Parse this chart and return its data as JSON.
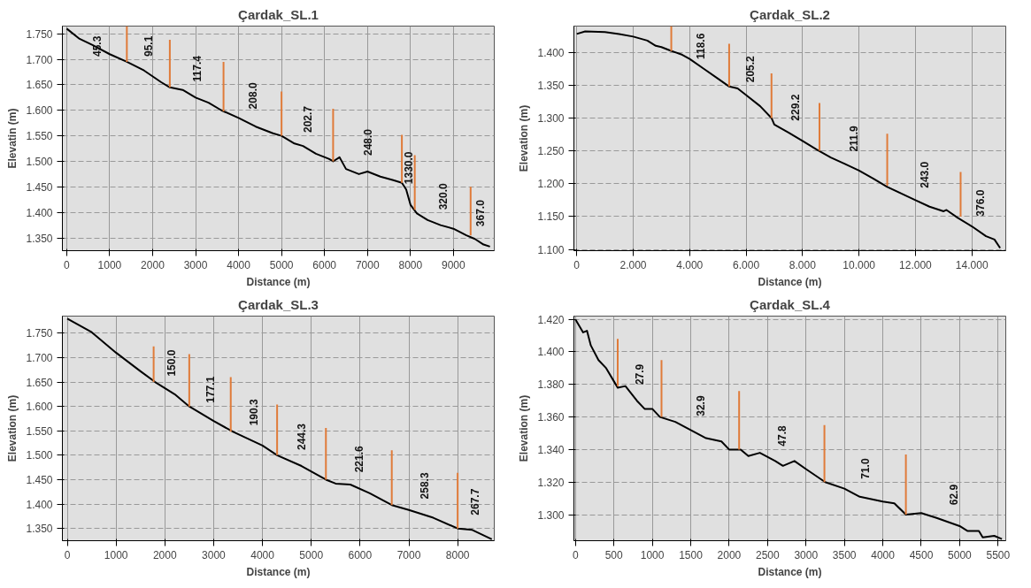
{
  "chart_data": [
    {
      "type": "line",
      "title": "Çardak_SL.1",
      "xlabel": "Distance (m)",
      "ylabel": "Elevatin (m)",
      "xlim": [
        -100,
        9950
      ],
      "ylim": [
        1.325,
        1.765
      ],
      "xticks": [
        0,
        1000,
        2000,
        3000,
        4000,
        5000,
        6000,
        7000,
        8000,
        9000
      ],
      "yticks": [
        {
          "value": 1.35,
          "label": "1.350"
        },
        {
          "value": 1.4,
          "label": "1.400"
        },
        {
          "value": 1.45,
          "label": "1.450"
        },
        {
          "value": 1.5,
          "label": "1.500"
        },
        {
          "value": 1.55,
          "label": "1.550"
        },
        {
          "value": 1.6,
          "label": "1.600"
        },
        {
          "value": 1.65,
          "label": "1.650"
        },
        {
          "value": 1.7,
          "label": "1.700"
        },
        {
          "value": 1.75,
          "label": "1.750"
        }
      ],
      "grid": true,
      "series": [
        {
          "color": "#000000",
          "x": [
            0,
            300,
            600,
            1000,
            1400,
            1800,
            2200,
            2400,
            2700,
            3000,
            3300,
            3600,
            4000,
            4400,
            4800,
            5000,
            5300,
            5500,
            5800,
            6100,
            6200,
            6350,
            6500,
            6800,
            7000,
            7300,
            7600,
            7800,
            7900,
            8000,
            8150,
            8400,
            8700,
            9000,
            9300,
            9500,
            9700,
            9850
          ],
          "values": [
            1.76,
            1.74,
            1.728,
            1.71,
            1.695,
            1.678,
            1.655,
            1.645,
            1.64,
            1.625,
            1.615,
            1.6,
            1.585,
            1.568,
            1.555,
            1.55,
            1.535,
            1.53,
            1.515,
            1.505,
            1.5,
            1.508,
            1.485,
            1.475,
            1.48,
            1.47,
            1.463,
            1.458,
            1.445,
            1.415,
            1.398,
            1.385,
            1.375,
            1.368,
            1.355,
            1.348,
            1.337,
            1.333
          ]
        },
        {
          "color": "#e07b39",
          "x": [
            1400,
            1400
          ],
          "values": [
            1.695,
            1.765
          ]
        },
        {
          "color": "#e07b39",
          "x": [
            2400,
            2400
          ],
          "values": [
            1.645,
            1.738
          ]
        },
        {
          "color": "#e07b39",
          "x": [
            3650,
            3650
          ],
          "values": [
            1.598,
            1.695
          ]
        },
        {
          "color": "#e07b39",
          "x": [
            5000,
            5000
          ],
          "values": [
            1.55,
            1.637
          ]
        },
        {
          "color": "#e07b39",
          "x": [
            6200,
            6200
          ],
          "values": [
            1.5,
            1.603
          ]
        },
        {
          "color": "#e07b39",
          "x": [
            7800,
            7800
          ],
          "values": [
            1.458,
            1.552
          ]
        },
        {
          "color": "#e07b39",
          "x": [
            8100,
            8100
          ],
          "values": [
            1.405,
            1.512
          ]
        },
        {
          "color": "#e07b39",
          "x": [
            9400,
            9400
          ],
          "values": [
            1.355,
            1.45
          ]
        }
      ],
      "annotations": [
        "45.3",
        "95.1",
        "117.4",
        "208.0",
        "202.7",
        "248.0",
        "1330.0",
        "320.0",
        "367.0"
      ]
    },
    {
      "type": "line",
      "title": "Çardak_SL.2",
      "xlabel": "Distance (m)",
      "ylabel": "Elevation (m)",
      "xlim": [
        -0.1,
        15.2
      ],
      "ylim": [
        1.098,
        1.44
      ],
      "xticks": [
        0,
        {
          "value": 2,
          "label": "2.000"
        },
        {
          "value": 4,
          "label": "4.000"
        },
        {
          "value": 6,
          "label": "6.000"
        },
        {
          "value": 8,
          "label": "8.000"
        },
        {
          "value": 10,
          "label": "10.000"
        },
        {
          "value": 12,
          "label": "12.000"
        },
        {
          "value": 14,
          "label": "14.000"
        }
      ],
      "yticks": [
        {
          "value": 1.1,
          "label": "1.100"
        },
        {
          "value": 1.15,
          "label": "1.150"
        },
        {
          "value": 1.2,
          "label": "1.200"
        },
        {
          "value": 1.25,
          "label": "1.250"
        },
        {
          "value": 1.3,
          "label": "1.300"
        },
        {
          "value": 1.35,
          "label": "1.350"
        },
        {
          "value": 1.4,
          "label": "1.400"
        }
      ],
      "grid": true,
      "series": [
        {
          "color": "#000000",
          "x": [
            0,
            0.3,
            1,
            1.5,
            2,
            2.5,
            2.8,
            3,
            3.3,
            3.7,
            4,
            4.5,
            5,
            5.4,
            5.7,
            6,
            6.5,
            6.9,
            7,
            7.5,
            8,
            8.5,
            9,
            9.5,
            10,
            10.5,
            11,
            11.5,
            12,
            12.5,
            13,
            13.1,
            13.5,
            14,
            14.5,
            14.8,
            15
          ],
          "values": [
            1.428,
            1.432,
            1.431,
            1.428,
            1.424,
            1.418,
            1.41,
            1.408,
            1.403,
            1.397,
            1.39,
            1.375,
            1.36,
            1.348,
            1.345,
            1.335,
            1.318,
            1.3,
            1.29,
            1.278,
            1.265,
            1.252,
            1.24,
            1.23,
            1.22,
            1.208,
            1.195,
            1.185,
            1.175,
            1.165,
            1.158,
            1.16,
            1.148,
            1.135,
            1.12,
            1.115,
            1.102
          ]
        },
        {
          "color": "#e07b39",
          "x": [
            3.35,
            3.35
          ],
          "values": [
            1.402,
            1.44
          ]
        },
        {
          "color": "#e07b39",
          "x": [
            5.4,
            5.4
          ],
          "values": [
            1.348,
            1.413
          ]
        },
        {
          "color": "#e07b39",
          "x": [
            6.9,
            6.9
          ],
          "values": [
            1.3,
            1.368
          ]
        },
        {
          "color": "#e07b39",
          "x": [
            8.6,
            8.6
          ],
          "values": [
            1.25,
            1.323
          ]
        },
        {
          "color": "#e07b39",
          "x": [
            11,
            11
          ],
          "values": [
            1.197,
            1.276
          ]
        },
        {
          "color": "#e07b39",
          "x": [
            13.6,
            13.6
          ],
          "values": [
            1.15,
            1.218
          ]
        }
      ],
      "annotations": [
        "118.6",
        "205.2",
        "229.2",
        "211.9",
        "243.0",
        "376.0"
      ]
    },
    {
      "type": "line",
      "title": "Çardak_SL.3",
      "xlabel": "Distance (m)",
      "ylabel": "Elevation (m)",
      "xlim": [
        -100,
        8750
      ],
      "ylim": [
        1.325,
        1.785
      ],
      "xticks": [
        0,
        1000,
        2000,
        3000,
        4000,
        5000,
        6000,
        7000,
        8000
      ],
      "yticks": [
        {
          "value": 1.35,
          "label": "1.350"
        },
        {
          "value": 1.4,
          "label": "1.400"
        },
        {
          "value": 1.45,
          "label": "1.450"
        },
        {
          "value": 1.5,
          "label": "1.500"
        },
        {
          "value": 1.55,
          "label": "1.550"
        },
        {
          "value": 1.6,
          "label": "1.600"
        },
        {
          "value": 1.65,
          "label": "1.650"
        },
        {
          "value": 1.7,
          "label": "1.700"
        },
        {
          "value": 1.75,
          "label": "1.750"
        }
      ],
      "grid": true,
      "series": [
        {
          "color": "#000000",
          "x": [
            0,
            500,
            1000,
            1500,
            1800,
            2200,
            2500,
            3000,
            3400,
            4000,
            4300,
            4800,
            5300,
            5500,
            5800,
            6200,
            6650,
            7000,
            7500,
            8000,
            8300,
            8700
          ],
          "values": [
            1.78,
            1.752,
            1.71,
            1.672,
            1.65,
            1.625,
            1.6,
            1.57,
            1.548,
            1.52,
            1.5,
            1.478,
            1.45,
            1.442,
            1.44,
            1.422,
            1.398,
            1.388,
            1.372,
            1.35,
            1.347,
            1.328
          ]
        },
        {
          "color": "#e07b39",
          "x": [
            1770,
            1770
          ],
          "values": [
            1.65,
            1.723
          ]
        },
        {
          "color": "#e07b39",
          "x": [
            2500,
            2500
          ],
          "values": [
            1.6,
            1.707
          ]
        },
        {
          "color": "#e07b39",
          "x": [
            3350,
            3350
          ],
          "values": [
            1.548,
            1.66
          ]
        },
        {
          "color": "#e07b39",
          "x": [
            4300,
            4300
          ],
          "values": [
            1.5,
            1.604
          ]
        },
        {
          "color": "#e07b39",
          "x": [
            5300,
            5300
          ],
          "values": [
            1.45,
            1.556
          ]
        },
        {
          "color": "#e07b39",
          "x": [
            6650,
            6650
          ],
          "values": [
            1.398,
            1.51
          ]
        },
        {
          "color": "#e07b39",
          "x": [
            8000,
            8000
          ],
          "values": [
            1.35,
            1.464
          ]
        }
      ],
      "annotations": [
        "150.0",
        "177.1",
        "190.3",
        "244.3",
        "221.6",
        "258.3",
        "267.7"
      ]
    },
    {
      "type": "line",
      "title": "Çardak_SL.4",
      "xlabel": "Distance (m)",
      "ylabel": "Elevation (m)",
      "xlim": [
        -20,
        5600
      ],
      "ylim": [
        1.284,
        1.422
      ],
      "xticks": [
        0,
        500,
        1000,
        1500,
        2000,
        2500,
        3000,
        3500,
        4000,
        4500,
        5000,
        5500
      ],
      "yticks": [
        {
          "value": 1.3,
          "label": "1.300"
        },
        {
          "value": 1.32,
          "label": "1.320"
        },
        {
          "value": 1.34,
          "label": "1.340"
        },
        {
          "value": 1.36,
          "label": "1.360"
        },
        {
          "value": 1.38,
          "label": "1.380"
        },
        {
          "value": 1.4,
          "label": "1.400"
        },
        {
          "value": 1.42,
          "label": "1.420"
        }
      ],
      "grid": true,
      "series": [
        {
          "color": "#000000",
          "x": [
            0,
            100,
            150,
            200,
            300,
            400,
            500,
            550,
            650,
            800,
            900,
            1000,
            1100,
            1300,
            1500,
            1700,
            1900,
            2000,
            2150,
            2250,
            2400,
            2600,
            2700,
            2850,
            3000,
            3250,
            3500,
            3700,
            4000,
            4150,
            4300,
            4500,
            4700,
            5000,
            5100,
            5250,
            5300,
            5450,
            5550
          ],
          "values": [
            1.42,
            1.412,
            1.413,
            1.404,
            1.395,
            1.39,
            1.382,
            1.378,
            1.379,
            1.37,
            1.365,
            1.365,
            1.36,
            1.357,
            1.352,
            1.347,
            1.345,
            1.34,
            1.34,
            1.336,
            1.338,
            1.333,
            1.33,
            1.333,
            1.328,
            1.32,
            1.316,
            1.311,
            1.308,
            1.307,
            1.3,
            1.301,
            1.298,
            1.293,
            1.29,
            1.29,
            1.286,
            1.287,
            1.285
          ]
        },
        {
          "color": "#e07b39",
          "x": [
            550,
            550
          ],
          "values": [
            1.379,
            1.408
          ]
        },
        {
          "color": "#e07b39",
          "x": [
            1120,
            1120
          ],
          "values": [
            1.36,
            1.395
          ]
        },
        {
          "color": "#e07b39",
          "x": [
            2130,
            2130
          ],
          "values": [
            1.34,
            1.376
          ]
        },
        {
          "color": "#e07b39",
          "x": [
            3240,
            3240
          ],
          "values": [
            1.32,
            1.355
          ]
        },
        {
          "color": "#e07b39",
          "x": [
            4300,
            4300
          ],
          "values": [
            1.3,
            1.337
          ]
        }
      ],
      "annotations": [
        "27.9",
        "32.9",
        "47.8",
        "71.0",
        "62.9"
      ]
    }
  ]
}
